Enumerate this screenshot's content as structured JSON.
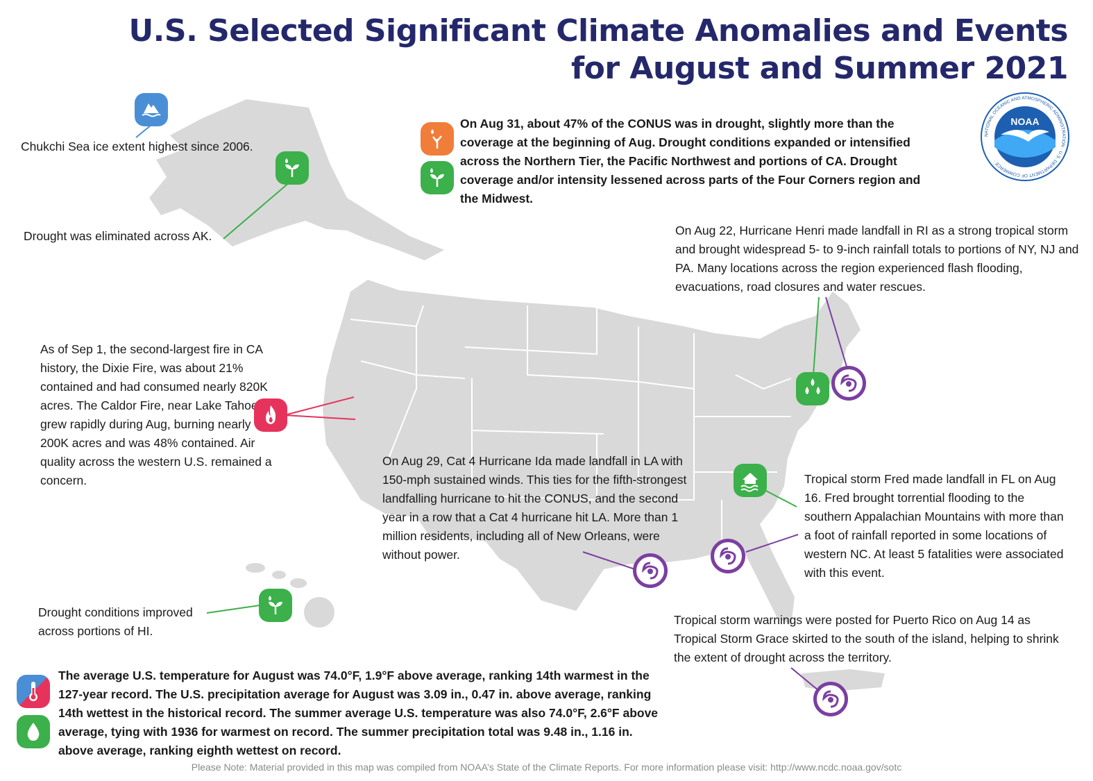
{
  "header": {
    "title_line1": "U.S. Selected Significant Climate Anomalies and Events",
    "title_line2": "for August and Summer 2021"
  },
  "logo": {
    "text": "NOAA",
    "ring_text": "NATIONAL OCEANIC AND ATMOSPHERIC ADMINISTRATION · U.S. DEPARTMENT OF COMMERCE ·"
  },
  "colors": {
    "title": "#24286b",
    "map_land": "#d9d9d9",
    "drought_green": "#3cb04a",
    "hurricane_purple": "#7b3fa0",
    "fire_red": "#e6335c",
    "drought_orange": "#f07d3a",
    "ice_blue": "#4a8fd6",
    "noaa_blue": "#1d5fb0"
  },
  "annotations": {
    "chukchi": "Chukchi Sea ice extent highest since 2006.",
    "alaska_drought": "Drought was eliminated across AK.",
    "conus_drought": "On Aug 31, about 47% of the CONUS was in drought, slightly more than the coverage at the beginning of Aug. Drought conditions expanded or intensified across the Northern Tier, the Pacific Northwest and portions of CA. Drought coverage and/or intensity lessened across parts of the Four Corners region and the Midwest.",
    "henri": "On Aug 22, Hurricane Henri made landfall in RI as a strong tropical storm and brought widespread 5- to 9-inch rainfall totals to portions of NY, NJ and PA. Many locations across the region experienced flash flooding, evacuations, road closures and water rescues.",
    "fire": "As of Sep 1, the second-largest fire in CA history, the Dixie Fire, was about 21% contained and had consumed nearly 820K acres. The Caldor Fire, near Lake Tahoe, grew rapidly during Aug, burning nearly 200K acres and was 48% contained. Air quality across the western U.S. remained a concern.",
    "ida": "On Aug 29, Cat 4 Hurricane Ida made landfall in LA with 150-mph sustained winds. This ties for the fifth-strongest landfalling hurricane to hit the CONUS, and the second year in a row that a Cat 4 hurricane hit LA. More than 1 million residents, including all of New Orleans, were without power.",
    "fred": "Tropical storm Fred made landfall in FL on Aug 16. Fred brought torrential flooding to the southern Appalachian Mountains with more than a foot of rainfall reported in some locations of western NC. At least 5 fatalities were associated with this event.",
    "hawaii": "Drought conditions improved across portions of HI.",
    "puerto_rico": "Tropical storm warnings were posted for Puerto Rico on Aug 14 as Tropical Storm Grace skirted to the south of the island, helping to shrink the extent of drought across the territory.",
    "national": "The average U.S. temperature for August was 74.0°F, 1.9°F above average, ranking 14th warmest in the 127-year record. The U.S. precipitation average for August was 3.09 in., 0.47 in. above average, ranking 14th wettest in the historical record. The summer average U.S. temperature was also 74.0°F, 2.6°F above average, tying with 1936 for warmest on record. The summer precipitation total was 9.48 in., 1.16 in. above average, ranking eighth wettest on record."
  },
  "icons": {
    "ice": "sea-ice-icon",
    "drought_improved": "drought-improved-icon",
    "drought_worse": "drought-worsened-icon",
    "fire": "wildfire-icon",
    "hurricane": "hurricane-icon",
    "flood": "flood-icon",
    "rain": "heavy-rain-icon",
    "temperature": "thermometer-icon",
    "precipitation": "precipitation-icon"
  },
  "footer": {
    "note": "Please Note: Material provided in this map was compiled from NOAA’s State of the Climate Reports. For more information please visit: http://www.ncdc.noaa.gov/sotc"
  }
}
